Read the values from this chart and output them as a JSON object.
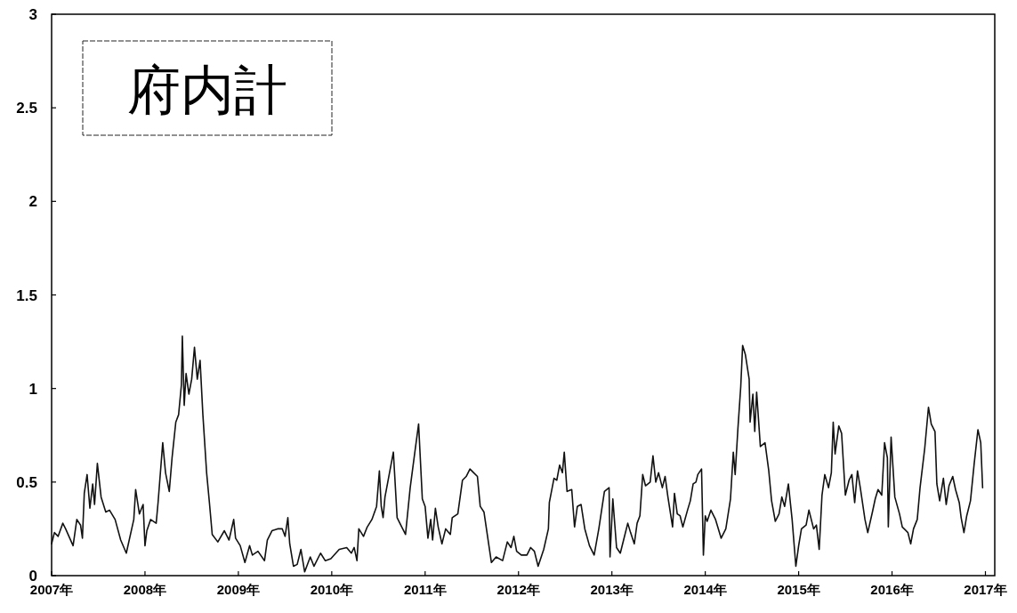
{
  "chart_data": {
    "type": "line",
    "title": "府内計",
    "xlim": [
      2007,
      2017.1
    ],
    "ylim": [
      0,
      3
    ],
    "xticks": [
      {
        "value": 2007,
        "label": "2007年"
      },
      {
        "value": 2008,
        "label": "2008年"
      },
      {
        "value": 2009,
        "label": "2009年"
      },
      {
        "value": 2010,
        "label": "2010年"
      },
      {
        "value": 2011,
        "label": "2011年"
      },
      {
        "value": 2012,
        "label": "2012年"
      },
      {
        "value": 2013,
        "label": "2013年"
      },
      {
        "value": 2014,
        "label": "2014年"
      },
      {
        "value": 2015,
        "label": "2015年"
      },
      {
        "value": 2016,
        "label": "2016年"
      },
      {
        "value": 2017,
        "label": "2017年"
      }
    ],
    "yticks": [
      0,
      0.5,
      1,
      1.5,
      2,
      2.5,
      3
    ],
    "series": [
      {
        "color": "#111111",
        "x": [
          2007.0,
          2007.03,
          2007.07,
          2007.12,
          2007.15,
          2007.23,
          2007.27,
          2007.31,
          2007.33,
          2007.35,
          2007.38,
          2007.41,
          2007.44,
          2007.46,
          2007.49,
          2007.53,
          2007.58,
          2007.62,
          2007.68,
          2007.74,
          2007.8,
          2007.88,
          2007.9,
          2007.94,
          2007.98,
          2008.0,
          2008.02,
          2008.06,
          2008.12,
          2008.14,
          2008.19,
          2008.22,
          2008.26,
          2008.29,
          2008.33,
          2008.36,
          2008.39,
          2008.4,
          2008.42,
          2008.44,
          2008.47,
          2008.5,
          2008.53,
          2008.56,
          2008.59,
          2008.62,
          2008.66,
          2008.69,
          2008.72,
          2008.78,
          2008.85,
          2008.9,
          2008.95,
          2008.97,
          2009.02,
          2009.07,
          2009.12,
          2009.15,
          2009.21,
          2009.28,
          2009.31,
          2009.36,
          2009.42,
          2009.47,
          2009.5,
          2009.53,
          2009.55,
          2009.59,
          2009.63,
          2009.67,
          2009.71,
          2009.77,
          2009.81,
          2009.88,
          2009.93,
          2009.99,
          2010.08,
          2010.16,
          2010.21,
          2010.24,
          2010.27,
          2010.29,
          2010.34,
          2010.38,
          2010.43,
          2010.48,
          2010.51,
          2010.53,
          2010.55,
          2010.57,
          2010.6,
          2010.66,
          2010.7,
          2010.75,
          2010.79,
          2010.84,
          2010.89,
          2010.93,
          2010.97,
          2011.0,
          2011.03,
          2011.06,
          2011.08,
          2011.11,
          2011.14,
          2011.18,
          2011.22,
          2011.27,
          2011.29,
          2011.35,
          2011.4,
          2011.44,
          2011.48,
          2011.52,
          2011.56,
          2011.59,
          2011.63,
          2011.68,
          2011.71,
          2011.76,
          2011.83,
          2011.88,
          2011.92,
          2011.95,
          2011.98,
          2012.03,
          2012.09,
          2012.13,
          2012.17,
          2012.21,
          2012.27,
          2012.32,
          2012.33,
          2012.38,
          2012.41,
          2012.44,
          2012.47,
          2012.49,
          2012.52,
          2012.57,
          2012.6,
          2012.63,
          2012.67,
          2012.71,
          2012.76,
          2012.81,
          2012.86,
          2012.92,
          2012.97,
          2012.98,
          2013.01,
          2013.05,
          2013.09,
          2013.14,
          2013.17,
          2013.2,
          2013.24,
          2013.27,
          2013.3,
          2013.33,
          2013.36,
          2013.41,
          2013.44,
          2013.47,
          2013.5,
          2013.54,
          2013.57,
          2013.6,
          2013.65,
          2013.67,
          2013.7,
          2013.73,
          2013.76,
          2013.81,
          2013.84,
          2013.87,
          2013.9,
          2013.92,
          2013.96,
          2013.98,
          2014.0,
          2014.02,
          2014.06,
          2014.11,
          2014.17,
          2014.22,
          2014.27,
          2014.3,
          2014.32,
          2014.35,
          2014.38,
          2014.4,
          2014.43,
          2014.47,
          2014.48,
          2014.51,
          2014.53,
          2014.55,
          2014.59,
          2014.64,
          2014.68,
          2014.71,
          2014.75,
          2014.79,
          2014.82,
          2014.85,
          2014.89,
          2014.93,
          2014.97,
          2015.0,
          2015.03,
          2015.08,
          2015.11,
          2015.16,
          2015.19,
          2015.22,
          2015.25,
          2015.28,
          2015.32,
          2015.35,
          2015.37,
          2015.39,
          2015.43,
          2015.46,
          2015.5,
          2015.54,
          2015.57,
          2015.6,
          2015.63,
          2015.66,
          2015.71,
          2015.74,
          2015.79,
          2015.82,
          2015.85,
          2015.89,
          2015.92,
          2015.95,
          2015.96,
          2015.99,
          2016.03,
          2016.08,
          2016.11,
          2016.17,
          2016.2,
          2016.23,
          2016.27,
          2016.3,
          2016.35,
          2016.39,
          2016.42,
          2016.46,
          2016.48,
          2016.51,
          2016.55,
          2016.58,
          2016.61,
          2016.65,
          2016.68,
          2016.72,
          2016.74,
          2016.77,
          2016.8,
          2016.84,
          2016.88,
          2016.92,
          2016.95,
          2016.97
        ],
        "values": [
          0.17,
          0.23,
          0.21,
          0.28,
          0.25,
          0.16,
          0.3,
          0.27,
          0.2,
          0.44,
          0.54,
          0.36,
          0.49,
          0.38,
          0.6,
          0.42,
          0.34,
          0.35,
          0.3,
          0.19,
          0.12,
          0.3,
          0.46,
          0.33,
          0.38,
          0.16,
          0.24,
          0.3,
          0.28,
          0.39,
          0.71,
          0.55,
          0.45,
          0.63,
          0.82,
          0.86,
          1.02,
          1.28,
          0.91,
          1.08,
          0.97,
          1.05,
          1.22,
          1.05,
          1.15,
          0.86,
          0.55,
          0.39,
          0.22,
          0.18,
          0.24,
          0.19,
          0.3,
          0.2,
          0.16,
          0.07,
          0.16,
          0.11,
          0.13,
          0.08,
          0.19,
          0.24,
          0.25,
          0.25,
          0.21,
          0.31,
          0.17,
          0.05,
          0.06,
          0.14,
          0.02,
          0.1,
          0.05,
          0.12,
          0.08,
          0.09,
          0.14,
          0.15,
          0.12,
          0.15,
          0.08,
          0.25,
          0.21,
          0.26,
          0.3,
          0.37,
          0.56,
          0.37,
          0.31,
          0.42,
          0.5,
          0.66,
          0.31,
          0.26,
          0.22,
          0.47,
          0.66,
          0.81,
          0.41,
          0.37,
          0.2,
          0.3,
          0.19,
          0.36,
          0.26,
          0.17,
          0.25,
          0.22,
          0.31,
          0.33,
          0.51,
          0.53,
          0.57,
          0.55,
          0.53,
          0.37,
          0.34,
          0.17,
          0.07,
          0.1,
          0.08,
          0.18,
          0.15,
          0.21,
          0.13,
          0.11,
          0.11,
          0.15,
          0.13,
          0.05,
          0.14,
          0.25,
          0.39,
          0.52,
          0.51,
          0.59,
          0.55,
          0.66,
          0.45,
          0.46,
          0.26,
          0.37,
          0.38,
          0.25,
          0.16,
          0.11,
          0.25,
          0.45,
          0.47,
          0.1,
          0.41,
          0.15,
          0.12,
          0.22,
          0.28,
          0.23,
          0.17,
          0.28,
          0.32,
          0.54,
          0.48,
          0.5,
          0.64,
          0.5,
          0.55,
          0.47,
          0.53,
          0.42,
          0.26,
          0.44,
          0.33,
          0.32,
          0.26,
          0.35,
          0.4,
          0.49,
          0.5,
          0.54,
          0.57,
          0.11,
          0.32,
          0.29,
          0.35,
          0.3,
          0.2,
          0.25,
          0.41,
          0.66,
          0.54,
          0.79,
          1.01,
          1.23,
          1.18,
          1.05,
          0.82,
          0.97,
          0.77,
          0.98,
          0.69,
          0.71,
          0.56,
          0.4,
          0.29,
          0.33,
          0.42,
          0.37,
          0.49,
          0.3,
          0.05,
          0.16,
          0.25,
          0.27,
          0.35,
          0.25,
          0.27,
          0.14,
          0.43,
          0.54,
          0.47,
          0.55,
          0.82,
          0.65,
          0.8,
          0.76,
          0.43,
          0.51,
          0.54,
          0.39,
          0.56,
          0.47,
          0.3,
          0.23,
          0.34,
          0.41,
          0.46,
          0.43,
          0.71,
          0.63,
          0.26,
          0.74,
          0.42,
          0.33,
          0.26,
          0.23,
          0.17,
          0.25,
          0.3,
          0.47,
          0.68,
          0.9,
          0.81,
          0.77,
          0.49,
          0.4,
          0.52,
          0.38,
          0.48,
          0.53,
          0.46,
          0.39,
          0.31,
          0.23,
          0.32,
          0.4,
          0.6,
          0.78,
          0.71,
          0.47
        ]
      }
    ]
  }
}
